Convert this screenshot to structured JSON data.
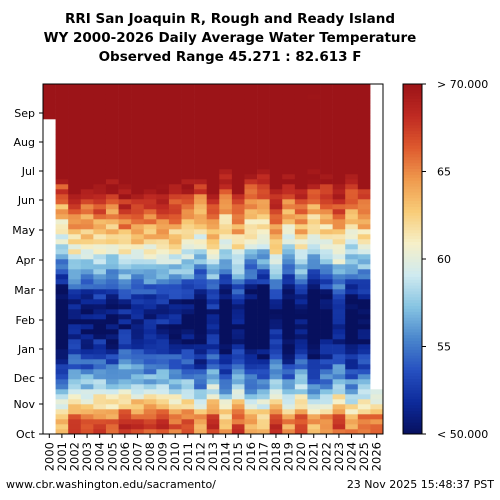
{
  "chart_data": {
    "type": "heatmap",
    "title": [
      "RRI San Joaquin R, Rough and Ready Island",
      "WY 2000-2026 Daily Average Water Temperature",
      "Observed Range 45.271 : 82.613 F"
    ],
    "x_tick_labels": [
      "2000",
      "2001",
      "2002",
      "2003",
      "2004",
      "2005",
      "2006",
      "2007",
      "2008",
      "2009",
      "2010",
      "2011",
      "2012",
      "2013",
      "2014",
      "2015",
      "2016",
      "2017",
      "2018",
      "2019",
      "2020",
      "2021",
      "2022",
      "2023",
      "2024",
      "2025",
      "2026"
    ],
    "y_tick_labels": [
      "Oct",
      "Nov",
      "Dec",
      "Jan",
      "Feb",
      "Mar",
      "Apr",
      "May",
      "Jun",
      "Jul",
      "Aug",
      "Sep"
    ],
    "colorbar": {
      "min": 50,
      "max": 70,
      "ticks": [
        "< 50.000",
        "55",
        "60",
        "65",
        "> 70.000"
      ]
    },
    "observed_range": [
      45.271,
      82.613
    ],
    "colormap": [
      "#07105e",
      "#0d2a9a",
      "#2650c0",
      "#4a86cc",
      "#86c4e2",
      "#cfeaf0",
      "#f6f0c8",
      "#f8cc78",
      "#ef9a4e",
      "#de5a2e",
      "#bf2a22",
      "#9c1418"
    ],
    "monthly_climatology_F": [
      65.5,
      57.5,
      53.0,
      49.5,
      50.0,
      55.5,
      60.5,
      64.5,
      69.0,
      75.0,
      76.0,
      73.0
    ]
  },
  "footer": {
    "left": "www.cbr.washington.edu/sacramento/",
    "right": "23 Nov 2025 15:48:37 PST"
  }
}
